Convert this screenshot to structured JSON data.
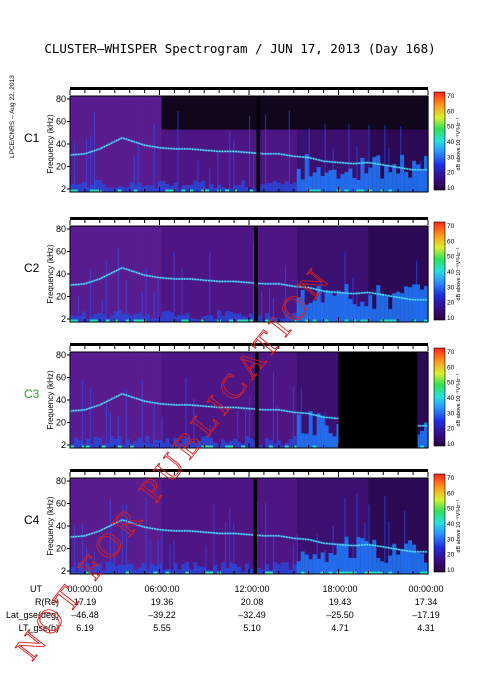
{
  "title": "CLUSTER–WHISPER Spectrogram / JUN 17, 2013 (Day 168)",
  "side_label": "LPCE/CNRS – Aug 22, 2013",
  "watermark": "NOT FOR PUBLICATION",
  "chart_data": {
    "type": "heatmap",
    "panels": [
      {
        "name": "C1",
        "name_color": "#000000",
        "ylabel": "Frequency (kHz)",
        "yticks": [
          "80",
          "60",
          "40",
          "20",
          "2"
        ],
        "cb_label": "dB above 10⁻⁸V²Hz⁻¹",
        "cb_ticks": [
          "70",
          "60",
          "50",
          "40",
          "30",
          "20",
          "10"
        ],
        "gaps": [
          [
            12.5,
            12.75
          ]
        ],
        "blackout": []
      },
      {
        "name": "C2",
        "name_color": "#000000",
        "ylabel": "Frequency (kHz)",
        "yticks": [
          "80",
          "60",
          "40",
          "20",
          "2"
        ],
        "cb_label": "dB above 10⁻⁸V²Hz⁻¹",
        "cb_ticks": [
          "70",
          "60",
          "50",
          "40",
          "30",
          "20",
          "10"
        ],
        "gaps": [
          [
            12.35,
            12.6
          ]
        ],
        "blackout": []
      },
      {
        "name": "C3",
        "name_color": "#2e9e2e",
        "ylabel": "Frequency (kHz)",
        "yticks": [
          "80",
          "60",
          "40",
          "20",
          "2"
        ],
        "cb_label": "dB above 10⁻⁸V²Hz⁻¹",
        "cb_ticks": [
          "70",
          "60",
          "50",
          "40",
          "30",
          "20",
          "10"
        ],
        "gaps": [
          [
            12.4,
            12.65
          ]
        ],
        "blackout": [
          [
            18.0,
            23.3
          ]
        ]
      },
      {
        "name": "C4",
        "name_color": "#000000",
        "ylabel": "Frequency (kHz)",
        "yticks": [
          "80",
          "60",
          "40",
          "20",
          "2"
        ],
        "cb_label": "dB above 10⁻⁸V²Hz⁻¹",
        "cb_ticks": [
          "70",
          "60",
          "50",
          "40",
          "30",
          "20",
          "10"
        ],
        "gaps": [
          [
            12.3,
            12.55
          ]
        ],
        "blackout": []
      }
    ],
    "colorbar_range": [
      10,
      70
    ],
    "plasma_line_khz": [
      [
        0,
        32
      ],
      [
        1,
        33
      ],
      [
        2,
        37
      ],
      [
        3,
        43
      ],
      [
        3.5,
        46
      ],
      [
        4,
        44
      ],
      [
        5,
        40
      ],
      [
        6,
        38
      ],
      [
        7,
        37
      ],
      [
        8,
        37
      ],
      [
        9,
        36
      ],
      [
        10,
        35
      ],
      [
        11,
        35
      ],
      [
        12,
        34
      ],
      [
        13,
        33
      ],
      [
        14,
        33
      ],
      [
        15,
        31
      ],
      [
        16,
        30
      ],
      [
        17,
        27
      ],
      [
        18,
        26
      ],
      [
        19,
        25
      ],
      [
        20,
        26
      ],
      [
        21,
        24
      ],
      [
        22,
        22
      ],
      [
        23,
        20
      ],
      [
        24,
        20
      ]
    ],
    "ephemeris": {
      "rows": [
        {
          "label": "UT",
          "values": [
            "00:00:00",
            "06:00:00",
            "12:00:00",
            "18:00:00",
            "00:00:00"
          ]
        },
        {
          "label": "R(Re)",
          "values": [
            "17.19",
            "19.36",
            "20.08",
            "19.43",
            "17.34"
          ]
        },
        {
          "label": "Lat_gse(deg)",
          "values": [
            "–46.48",
            "–39.22",
            "–32.49",
            "–25.50",
            "–17.19"
          ]
        },
        {
          "label": "LT_gse(h)",
          "values": [
            "6.19",
            "5.55",
            "5.10",
            "4.71",
            "4.31"
          ]
        }
      ]
    }
  }
}
